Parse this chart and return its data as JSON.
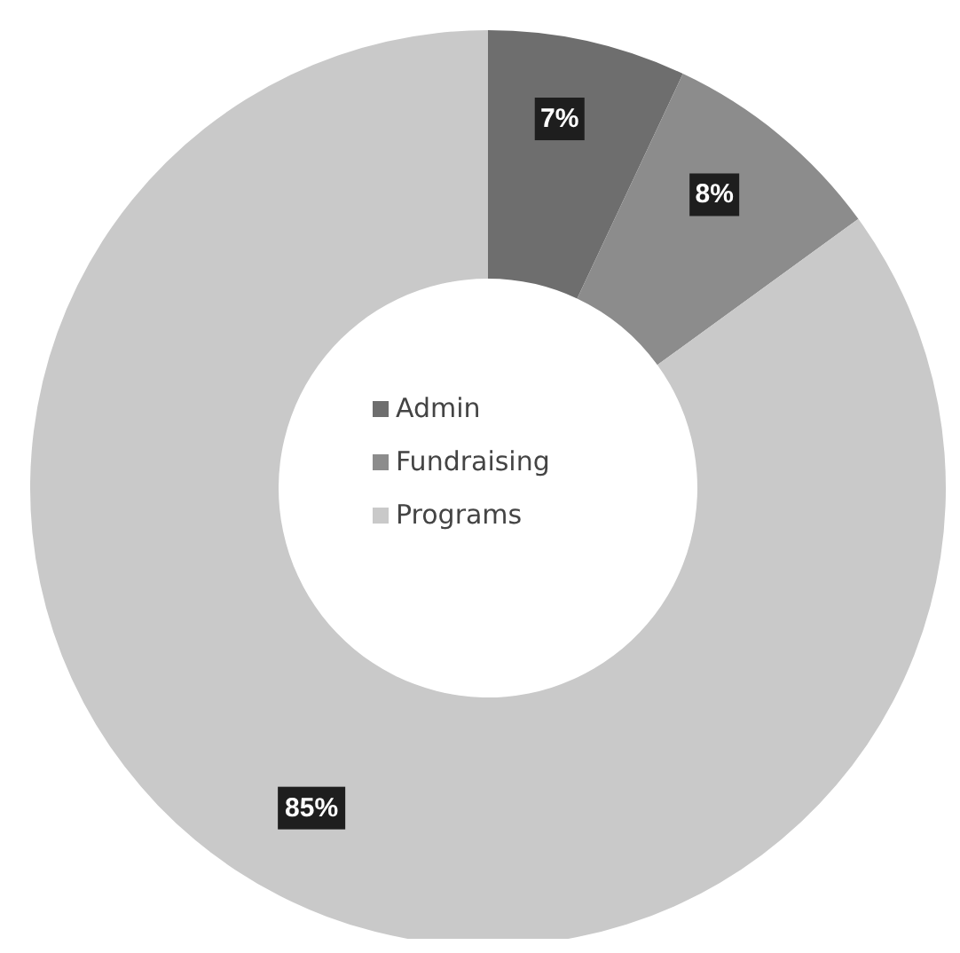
{
  "chart_data": {
    "type": "donut",
    "categories": [
      "Admin",
      "Fundraising",
      "Programs"
    ],
    "values": [
      7,
      8,
      85
    ],
    "colors": [
      "#6e6e6e",
      "#8c8c8c",
      "#c9c9c9"
    ],
    "value_labels": [
      "7%",
      "8%",
      "85%"
    ],
    "legend": "center"
  }
}
